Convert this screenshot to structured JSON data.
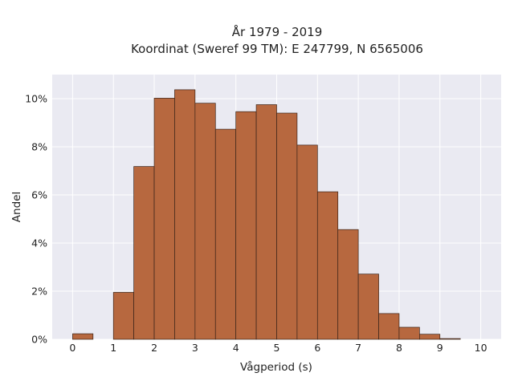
{
  "chart_data": {
    "type": "bar",
    "title_line1": "År 1979 - 2019",
    "title_line2": "Koordinat (Sweref 99 TM): E 247799, N 6565006",
    "xlabel": "Vågperiod (s)",
    "ylabel": "Andel",
    "bin_width": 0.5,
    "bins": [
      {
        "x": 0.0,
        "value": 0.23
      },
      {
        "x": 0.5,
        "value": 0.0
      },
      {
        "x": 1.0,
        "value": 1.95
      },
      {
        "x": 1.5,
        "value": 7.18
      },
      {
        "x": 2.0,
        "value": 10.02
      },
      {
        "x": 2.5,
        "value": 10.37
      },
      {
        "x": 3.0,
        "value": 9.81
      },
      {
        "x": 3.5,
        "value": 8.73
      },
      {
        "x": 4.0,
        "value": 9.46
      },
      {
        "x": 4.5,
        "value": 9.75
      },
      {
        "x": 5.0,
        "value": 9.4
      },
      {
        "x": 5.5,
        "value": 8.07
      },
      {
        "x": 6.0,
        "value": 6.13
      },
      {
        "x": 6.5,
        "value": 4.56
      },
      {
        "x": 7.0,
        "value": 2.71
      },
      {
        "x": 7.5,
        "value": 1.07
      },
      {
        "x": 8.0,
        "value": 0.5
      },
      {
        "x": 8.5,
        "value": 0.21
      },
      {
        "x": 9.0,
        "value": 0.03
      },
      {
        "x": 9.5,
        "value": 0.0
      }
    ],
    "xlim": [
      -0.5,
      10.5
    ],
    "ylim": [
      0,
      11
    ],
    "xticks": [
      0,
      1,
      2,
      3,
      4,
      5,
      6,
      7,
      8,
      9,
      10
    ],
    "yticks": [
      0,
      2,
      4,
      6,
      8,
      10
    ],
    "ytick_suffix": "%",
    "grid": true,
    "colors": {
      "bar_fill": "#b7683f",
      "bar_stroke": "#3a2318",
      "plot_bg": "#eaeaf2",
      "grid": "#ffffff"
    }
  }
}
